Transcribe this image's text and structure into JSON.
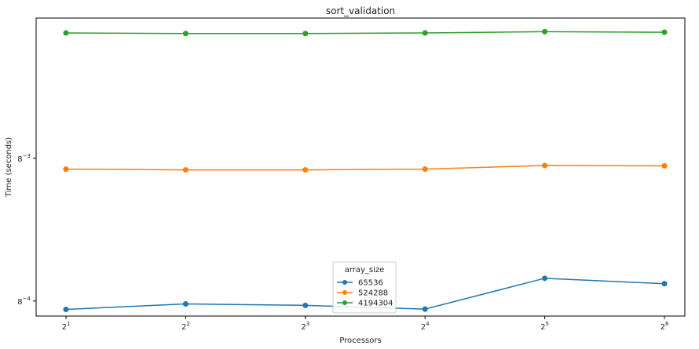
{
  "chart_data": {
    "type": "line",
    "title": "sort_validation",
    "xlabel": "Processors",
    "ylabel": "Time (seconds)",
    "x_scale": "log2",
    "y_scale": "log8",
    "x": [
      2,
      4,
      8,
      16,
      32,
      64
    ],
    "x_tick_labels": [
      {
        "base": "2",
        "exp": "1"
      },
      {
        "base": "2",
        "exp": "2"
      },
      {
        "base": "2",
        "exp": "3"
      },
      {
        "base": "2",
        "exp": "4"
      },
      {
        "base": "2",
        "exp": "5"
      },
      {
        "base": "2",
        "exp": "6"
      }
    ],
    "y_ticks": [
      {
        "value": 0.000244140625,
        "base": "8",
        "exp": "−4"
      },
      {
        "value": 0.001953125,
        "base": "8",
        "exp": "−3"
      }
    ],
    "ylim": [
      0.000196,
      0.0151
    ],
    "legend": {
      "title": "array_size",
      "placement": "bottom-center"
    },
    "grid": false,
    "series": [
      {
        "name": "65536",
        "color": "#1f77b4",
        "values": [
          0.000216,
          0.000234,
          0.000229,
          0.000217,
          0.00034,
          0.000314
        ]
      },
      {
        "name": "524288",
        "color": "#ff7f0e",
        "values": [
          0.00167,
          0.00165,
          0.00165,
          0.00167,
          0.00176,
          0.00175
        ]
      },
      {
        "name": "4194304",
        "color": "#2ca02c",
        "values": [
          0.01215,
          0.01205,
          0.01205,
          0.01215,
          0.01238,
          0.01228
        ]
      }
    ]
  }
}
